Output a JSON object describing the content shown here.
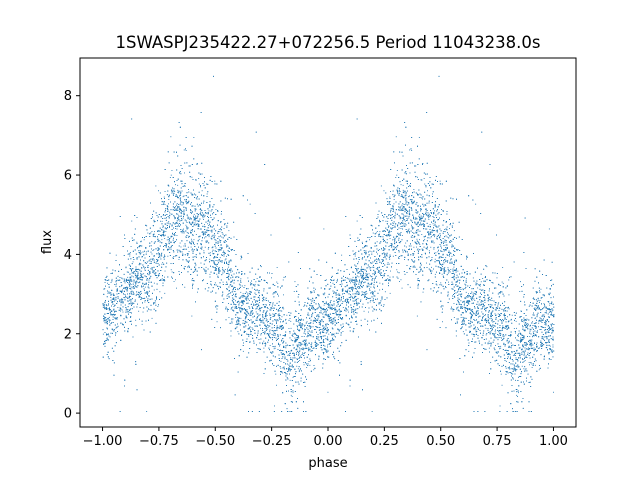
{
  "chart_data": {
    "type": "scatter",
    "title": "1SWASPJ235422.27+072256.5 Period 11043238.0s",
    "xlabel": "phase",
    "ylabel": "flux",
    "xlim": [
      -1.1,
      1.1
    ],
    "ylim": [
      -0.35,
      8.95
    ],
    "grid": false,
    "marker_color": "#1f77b4",
    "x_ticks": [
      {
        "value": -1.0,
        "label": "−1.00"
      },
      {
        "value": -0.75,
        "label": "−0.75"
      },
      {
        "value": -0.5,
        "label": "−0.50"
      },
      {
        "value": -0.25,
        "label": "−0.25"
      },
      {
        "value": 0.0,
        "label": "0.00"
      },
      {
        "value": 0.25,
        "label": "0.25"
      },
      {
        "value": 0.5,
        "label": "0.50"
      },
      {
        "value": 0.75,
        "label": "0.75"
      },
      {
        "value": 1.0,
        "label": "1.00"
      }
    ],
    "y_ticks": [
      {
        "value": 0,
        "label": "0"
      },
      {
        "value": 2,
        "label": "2"
      },
      {
        "value": 4,
        "label": "4"
      },
      {
        "value": 6,
        "label": "6"
      },
      {
        "value": 8,
        "label": "8"
      }
    ],
    "series": [
      {
        "name": "",
        "description_points": "dense scatter of flux vs phase; approximate mean flux profile over one period (repeats from -1 to 1)",
        "profile_phase": [
          0.0,
          0.04,
          0.08,
          0.12,
          0.16,
          0.2,
          0.22,
          0.25,
          0.28,
          0.31,
          0.34,
          0.37,
          0.4,
          0.43,
          0.46,
          0.5,
          0.54,
          0.58,
          0.62,
          0.66,
          0.7,
          0.74,
          0.78,
          0.8,
          0.82,
          0.86,
          0.9,
          0.94,
          0.98,
          1.0
        ],
        "profile_flux": [
          2.4,
          2.6,
          2.9,
          3.2,
          3.5,
          3.6,
          3.9,
          4.0,
          4.6,
          4.9,
          5.0,
          4.9,
          4.6,
          4.8,
          4.6,
          4.1,
          3.8,
          3.0,
          2.6,
          2.6,
          2.5,
          2.4,
          2.2,
          1.8,
          1.2,
          1.7,
          2.0,
          2.3,
          2.1,
          2.4
        ],
        "profile_spread": [
          0.5,
          0.5,
          0.5,
          0.5,
          0.55,
          0.6,
          0.6,
          0.6,
          0.7,
          0.7,
          0.7,
          0.7,
          0.7,
          0.7,
          0.7,
          0.7,
          0.7,
          0.6,
          0.5,
          0.5,
          0.5,
          0.5,
          0.6,
          0.7,
          0.7,
          0.6,
          0.5,
          0.5,
          0.5,
          0.5
        ],
        "flux_min": 0.05,
        "flux_max": 8.5
      }
    ]
  }
}
